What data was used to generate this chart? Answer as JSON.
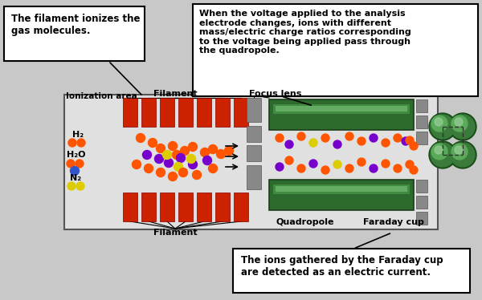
{
  "background_color": "#c8c8c8",
  "callout_box1": "The filament ionizes the\ngas molecules.",
  "callout_box2": "When the voltage applied to the analysis\nelectrode changes, ions with different\nmass/electric charge ratios corresponding\nto the voltage being applied pass through\nthe quadropole.",
  "callout_box3": "The ions gathered by the Faraday cup\nare detected as an electric current.",
  "label_ionization": "Ionization area",
  "label_filament_top": "Filament",
  "label_filament_bot": "Filament",
  "label_focus": "Focus lens",
  "label_quadropole": "Quadropole",
  "label_faraday": "Faraday cup",
  "label_h2": "H₂",
  "label_h2o": "H₂O",
  "label_n2": "N₂",
  "red_bar": "#cc2200",
  "green_rod": "#2d6a2d",
  "green_rod_light": "#4a9a4a",
  "green_rod_highlight": "#88cc88",
  "gray_lens": "#888888",
  "gray_lens_dark": "#555555",
  "orange_ion": "#ff5500",
  "purple_ion": "#7700cc",
  "yellow_ion": "#ddcc00",
  "dark_gray": "#555555",
  "white": "#ffffff",
  "black": "#000000",
  "diagram_bg": "#e8e8e8"
}
